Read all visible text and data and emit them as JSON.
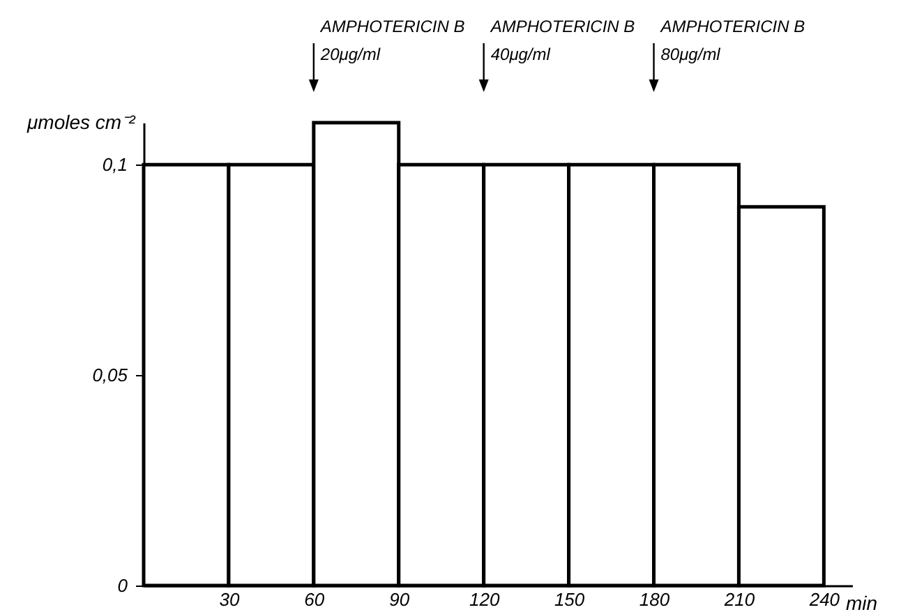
{
  "chart_data": {
    "type": "histogram",
    "xlabel": "min",
    "ylabel": "μmoles cm⁻²",
    "bins": [
      0,
      30,
      60,
      90,
      120,
      150,
      180,
      210,
      240
    ],
    "values": [
      0.1,
      0.1,
      0.11,
      0.1,
      0.1,
      0.1,
      0.1,
      0.09
    ],
    "xlim": [
      0,
      250
    ],
    "xticks": [
      30,
      60,
      90,
      120,
      150,
      180,
      210,
      240
    ],
    "ylim": [
      0,
      0.11
    ],
    "yticks": [
      0,
      {
        "value": 0.05,
        "label": "0,05"
      },
      {
        "value": 0.1,
        "label": "0,1"
      }
    ],
    "grid": false,
    "annotations": [
      "AMPHOTERICIN B\n20μg/ml",
      "AMPHOTERICIN B\n40μg/ml",
      "AMPHOTERICIN B\n80μg/ml"
    ]
  }
}
